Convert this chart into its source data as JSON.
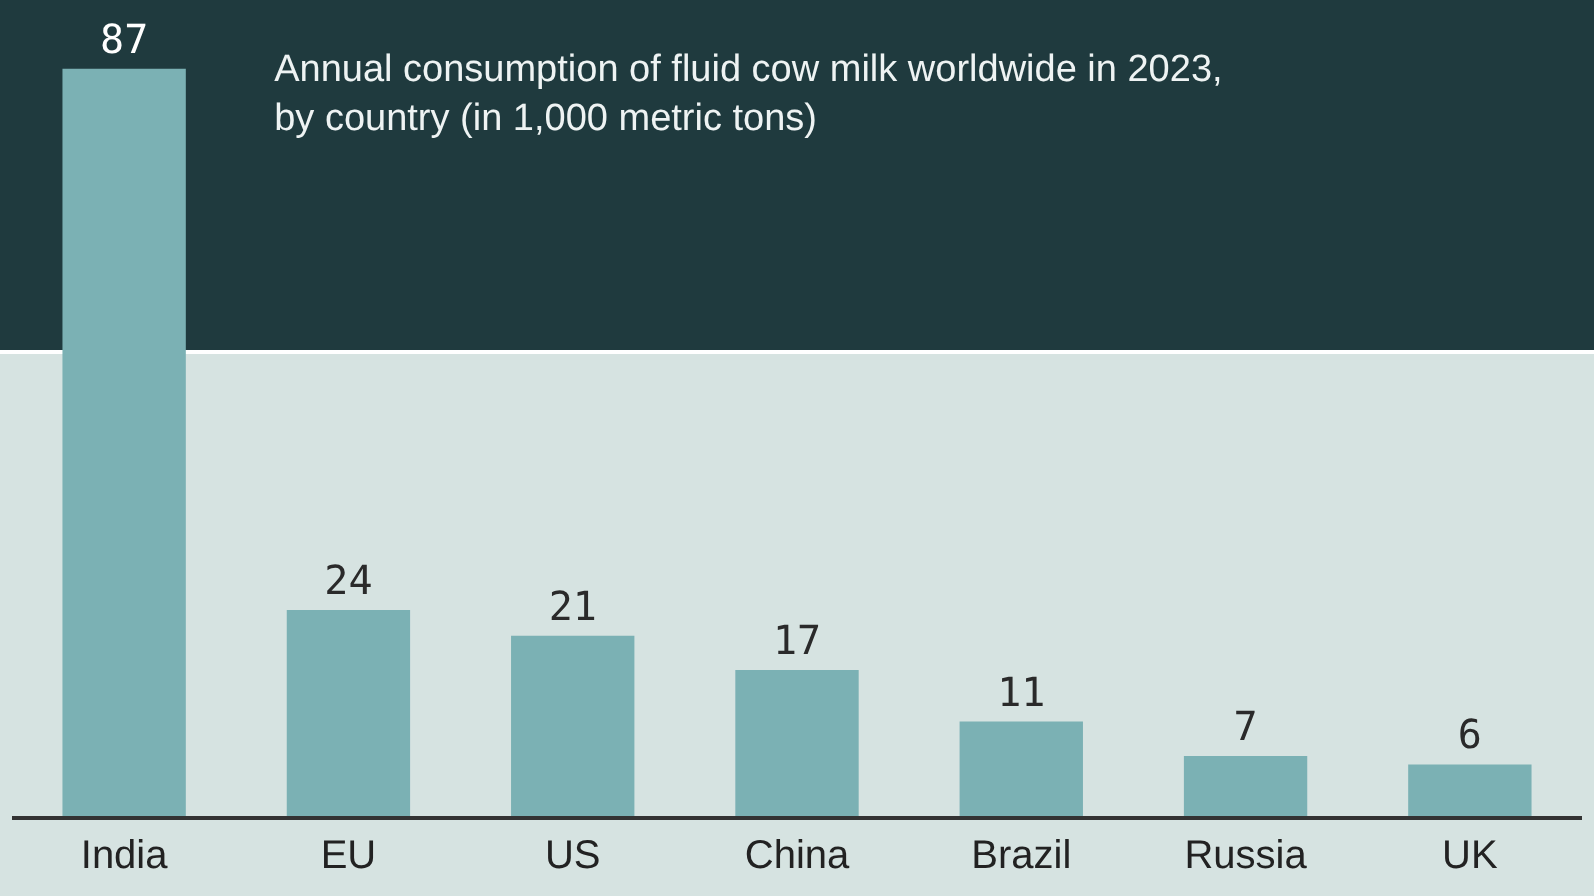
{
  "chart_data": {
    "type": "bar",
    "title": "Annual consumption of fluid cow milk worldwide in 2023,\nby country (in 1,000 metric tons)",
    "categories": [
      "India",
      "EU",
      "US",
      "China",
      "Brazil",
      "Russia",
      "UK"
    ],
    "values": [
      87,
      24,
      21,
      17,
      11,
      7,
      6
    ],
    "color": "#7bb1b4",
    "data_labels": true,
    "tick_labels": "x"
  }
}
